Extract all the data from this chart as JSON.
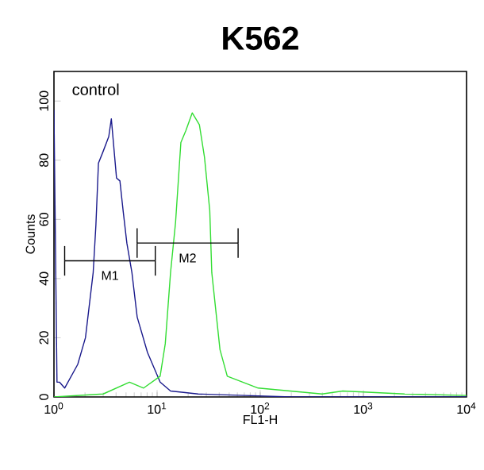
{
  "chart_data": {
    "type": "line",
    "title": "K562",
    "xlabel": "FL1-H",
    "ylabel": "Counts",
    "log": "x",
    "xlim": [
      1,
      10000
    ],
    "ylim": [
      0,
      110
    ],
    "xticks": [
      {
        "value": 1,
        "label": "10$^{0}$"
      },
      {
        "value": 10,
        "label": "10$^{1}$"
      },
      {
        "value": 100,
        "label": "10$^{2}$"
      },
      {
        "value": 1000,
        "label": "10$^{3}$"
      },
      {
        "value": 10000,
        "label": "10$^{4}$"
      }
    ],
    "yticks": [
      0,
      20,
      40,
      60,
      80,
      100
    ],
    "grid": false,
    "series": [
      {
        "color": "#1a1a8c",
        "x": [
          1,
          1.07,
          1.13,
          1.27,
          1.7,
          2.02,
          2.4,
          2.55,
          2.7,
          3.0,
          3.4,
          3.6,
          4.04,
          4.36,
          4.68,
          5.09,
          5.7,
          6.41,
          8.07,
          10.7,
          13.5,
          25,
          71,
          200,
          10000
        ],
        "values": [
          97,
          5,
          5,
          3,
          11,
          20,
          42,
          58,
          79,
          83,
          88,
          94,
          74,
          73,
          63,
          52,
          42,
          27,
          15,
          5,
          2,
          1,
          0.5,
          0,
          0
        ]
      },
      {
        "color": "#33dd33",
        "x": [
          1,
          3.0,
          5.4,
          7.4,
          10.7,
          12,
          13.5,
          15.1,
          17,
          19,
          21.9,
          25.7,
          28.8,
          32.4,
          33.9,
          40.7,
          47.9,
          95.5,
          398,
          631,
          2512,
          10000
        ],
        "values": [
          0,
          1,
          5,
          3,
          7,
          18,
          42,
          59,
          86,
          90,
          96,
          92,
          81,
          63,
          42,
          16,
          7,
          3,
          1,
          2,
          1,
          0.5
        ]
      },
      {
        "color": "#000000",
        "x": [
          1.27,
          9.6
        ],
        "values": [
          46,
          46
        ],
        "errors": [
          5,
          5
        ]
      },
      {
        "color": "#000000",
        "x": [
          6.4,
          61
        ],
        "values": [
          52,
          52
        ],
        "errors": [
          5,
          5
        ]
      }
    ],
    "annotations": [
      "control",
      "M1",
      "M2"
    ]
  }
}
